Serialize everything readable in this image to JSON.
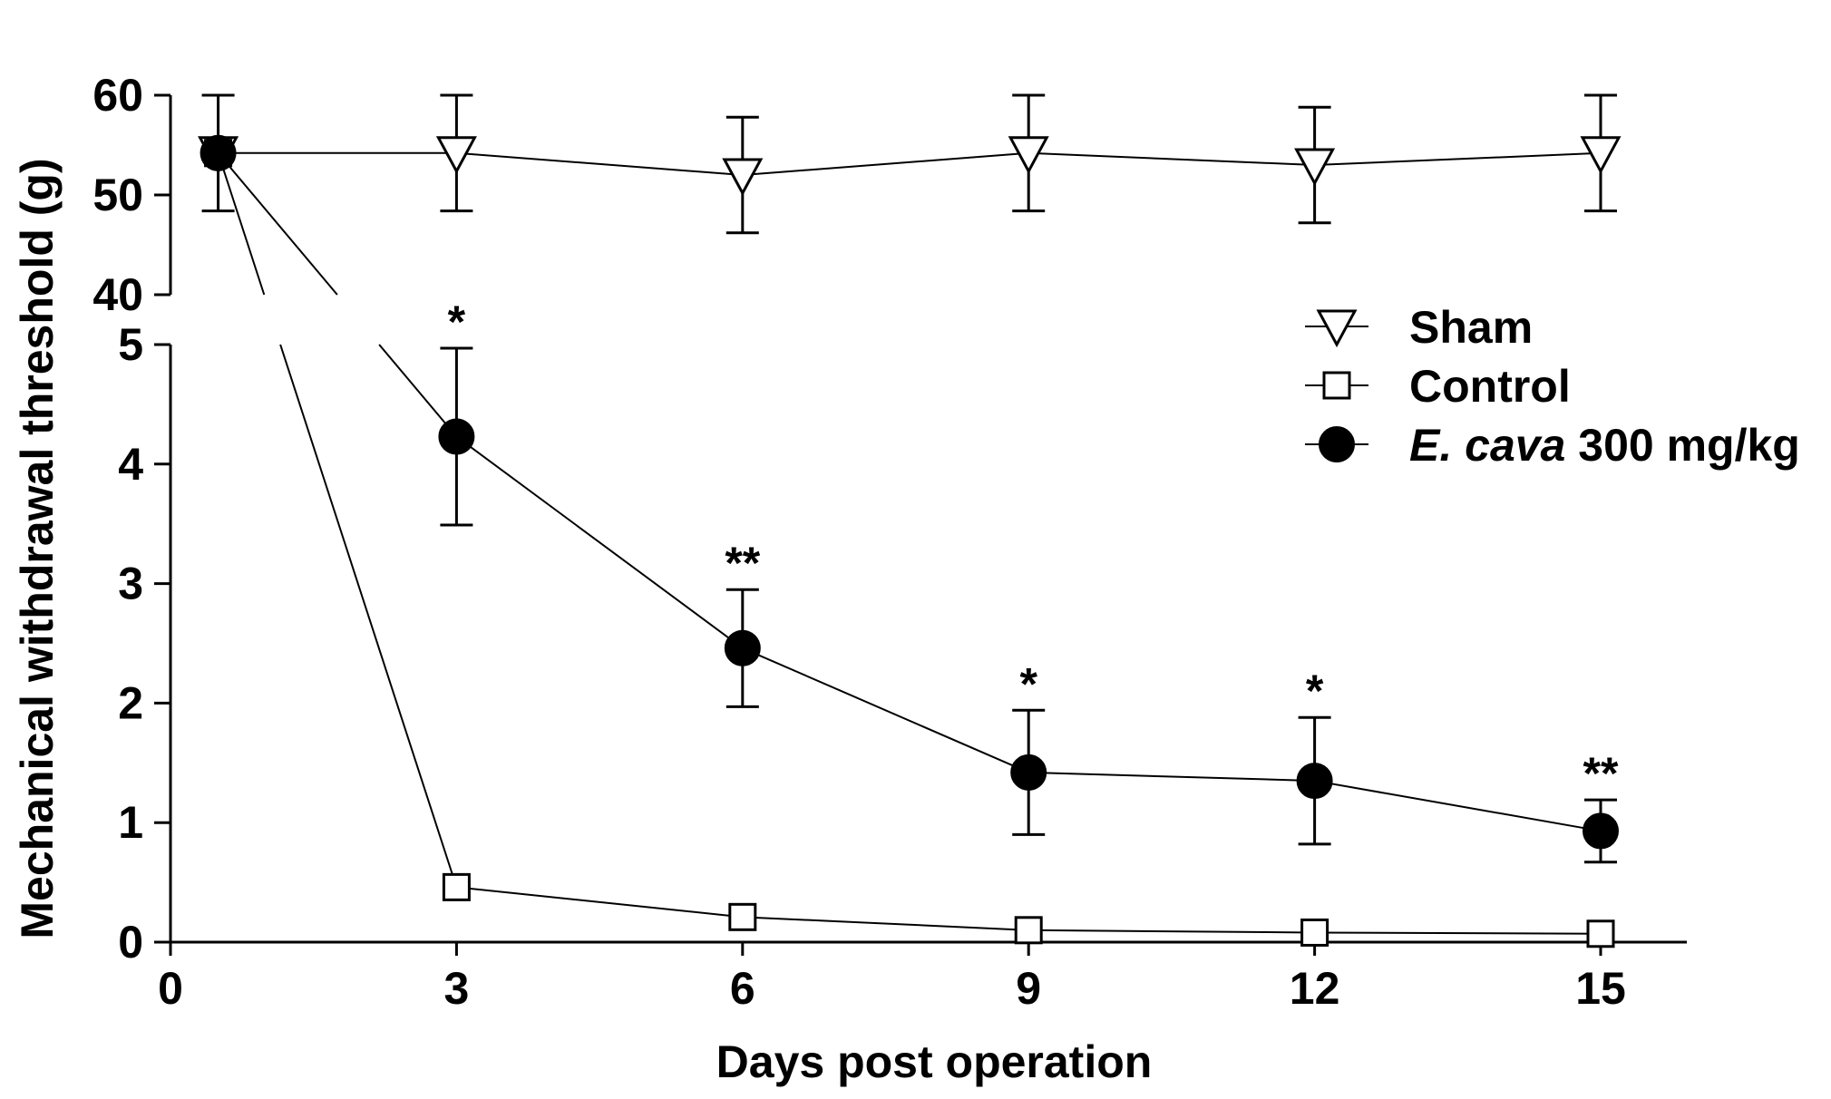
{
  "chart_data": {
    "type": "line",
    "title": "",
    "xlabel": "Days post operation",
    "ylabel": "Mechanical withdrawal threshold (g)",
    "xlim": [
      0,
      16
    ],
    "x_ticks": [
      0,
      3,
      6,
      9,
      12,
      15
    ],
    "y_axis_broken": true,
    "y_lower": {
      "range": [
        0,
        5
      ],
      "ticks": [
        0,
        1,
        2,
        3,
        4,
        5
      ]
    },
    "y_upper": {
      "range": [
        40,
        60
      ],
      "ticks": [
        40,
        50,
        60
      ]
    },
    "series": [
      {
        "name": "Sham",
        "marker": "triangle-down-open",
        "points": [
          {
            "x": 0.5,
            "y": 54.2,
            "err": 5.8
          },
          {
            "x": 3,
            "y": 54.2,
            "err": 5.8
          },
          {
            "x": 6,
            "y": 52.0,
            "err": 5.8
          },
          {
            "x": 9,
            "y": 54.2,
            "err": 5.8
          },
          {
            "x": 12,
            "y": 53.0,
            "err": 5.8
          },
          {
            "x": 15,
            "y": 54.2,
            "err": 5.8
          }
        ]
      },
      {
        "name": "Control",
        "marker": "square-open",
        "points": [
          {
            "x": 0.5,
            "y": 54.2,
            "err": 0
          },
          {
            "x": 3,
            "y": 0.46,
            "err": 0
          },
          {
            "x": 6,
            "y": 0.21,
            "err": 0
          },
          {
            "x": 9,
            "y": 0.1,
            "err": 0
          },
          {
            "x": 12,
            "y": 0.08,
            "err": 0
          },
          {
            "x": 15,
            "y": 0.07,
            "err": 0
          }
        ]
      },
      {
        "name": "E. cava 300 mg/kg",
        "name_italic": "E. cava",
        "name_rest": " 300 mg/kg",
        "marker": "circle-filled",
        "points": [
          {
            "x": 0.5,
            "y": 54.2,
            "err": 0
          },
          {
            "x": 3,
            "y": 4.23,
            "err": 0.74,
            "sig": "*"
          },
          {
            "x": 6,
            "y": 2.46,
            "err": 0.49,
            "sig": "**"
          },
          {
            "x": 9,
            "y": 1.42,
            "err": 0.52,
            "sig": "*"
          },
          {
            "x": 12,
            "y": 1.35,
            "err": 0.53,
            "sig": "*"
          },
          {
            "x": 15,
            "y": 0.93,
            "err": 0.26,
            "sig": "**"
          }
        ]
      }
    ],
    "legend_position": "right-center"
  }
}
